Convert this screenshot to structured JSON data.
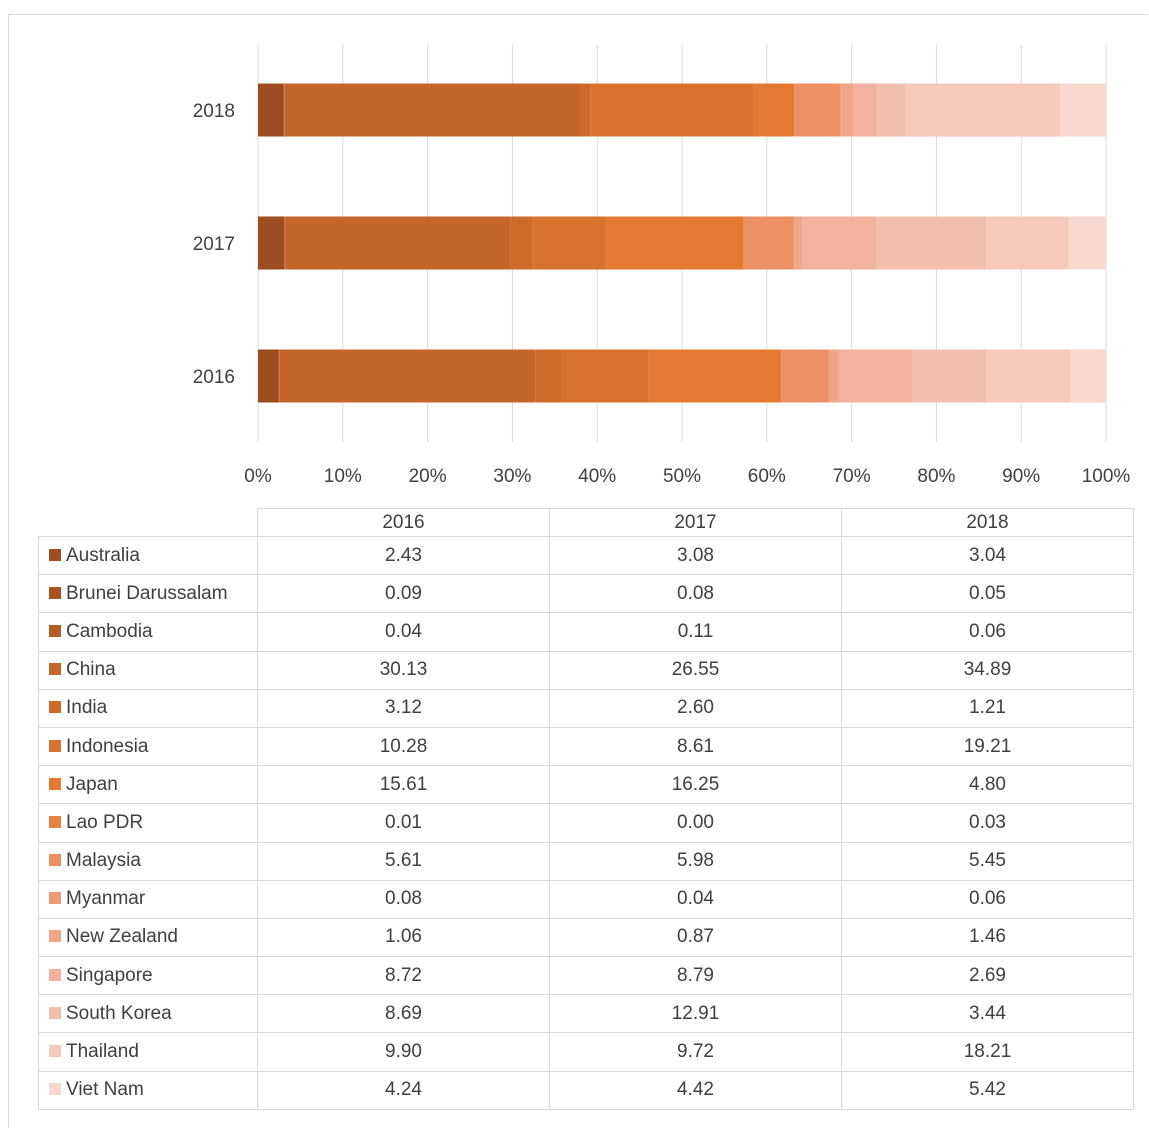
{
  "chart_data": {
    "type": "bar",
    "orientation": "horizontal",
    "stacked": "percent",
    "categories": [
      "2016",
      "2017",
      "2018"
    ],
    "xlim": [
      0,
      100
    ],
    "xticks": [
      "0%",
      "10%",
      "20%",
      "30%",
      "40%",
      "50%",
      "60%",
      "70%",
      "80%",
      "90%",
      "100%"
    ],
    "grid": true,
    "legend": "data-table-below",
    "series": [
      {
        "name": "Australia",
        "color": "#9e4d22",
        "values": [
          2.43,
          3.08,
          3.04
        ],
        "labels": [
          "2.43",
          "3.08",
          "3.04"
        ]
      },
      {
        "name": "Brunei Darussalam",
        "color": "#a9521f",
        "values": [
          0.09,
          0.08,
          0.05
        ],
        "labels": [
          "0.09",
          "0.08",
          "0.05"
        ]
      },
      {
        "name": "Cambodia",
        "color": "#b55b25",
        "values": [
          0.04,
          0.11,
          0.06
        ],
        "labels": [
          "0.04",
          "0.11",
          "0.06"
        ]
      },
      {
        "name": "China",
        "color": "#c4652b",
        "values": [
          30.13,
          26.55,
          34.89
        ],
        "labels": [
          "30.13",
          "26.55",
          "34.89"
        ]
      },
      {
        "name": "India",
        "color": "#cd6a2c",
        "values": [
          3.12,
          2.6,
          1.21
        ],
        "labels": [
          "3.12",
          "2.60",
          "1.21"
        ]
      },
      {
        "name": "Indonesia",
        "color": "#d9722f",
        "values": [
          10.28,
          8.61,
          19.21
        ],
        "labels": [
          "10.28",
          "8.61",
          "19.21"
        ]
      },
      {
        "name": "Japan",
        "color": "#e37932",
        "values": [
          15.61,
          16.25,
          4.8
        ],
        "labels": [
          "15.61",
          "16.25",
          "4.80"
        ]
      },
      {
        "name": "Lao PDR",
        "color": "#e8823e",
        "values": [
          0.01,
          0.0,
          0.03
        ],
        "labels": [
          "0.01",
          "0.00",
          "0.03"
        ]
      },
      {
        "name": "Malaysia",
        "color": "#ec9163",
        "values": [
          5.61,
          5.98,
          5.45
        ],
        "labels": [
          "5.61",
          "5.98",
          "5.45"
        ]
      },
      {
        "name": "Myanmar",
        "color": "#ee9a74",
        "values": [
          0.08,
          0.04,
          0.06
        ],
        "labels": [
          "0.08",
          "0.04",
          "0.06"
        ]
      },
      {
        "name": "New Zealand",
        "color": "#f0a788",
        "values": [
          1.06,
          0.87,
          1.46
        ],
        "labels": [
          "1.06",
          "0.87",
          "1.46"
        ]
      },
      {
        "name": "Singapore",
        "color": "#f2b29d",
        "values": [
          8.72,
          8.79,
          2.69
        ],
        "labels": [
          "8.72",
          "8.79",
          "2.69"
        ]
      },
      {
        "name": "South Korea",
        "color": "#f2bfae",
        "values": [
          8.69,
          12.91,
          3.44
        ],
        "labels": [
          "8.69",
          "12.91",
          "3.44"
        ]
      },
      {
        "name": "Thailand",
        "color": "#f7c9bb",
        "values": [
          9.9,
          9.72,
          18.21
        ],
        "labels": [
          "9.90",
          "9.72",
          "18.21"
        ]
      },
      {
        "name": "Viet Nam",
        "color": "#f8d9d0",
        "values": [
          4.24,
          4.42,
          5.42
        ],
        "labels": [
          "4.24",
          "4.42",
          "5.42"
        ]
      }
    ]
  }
}
